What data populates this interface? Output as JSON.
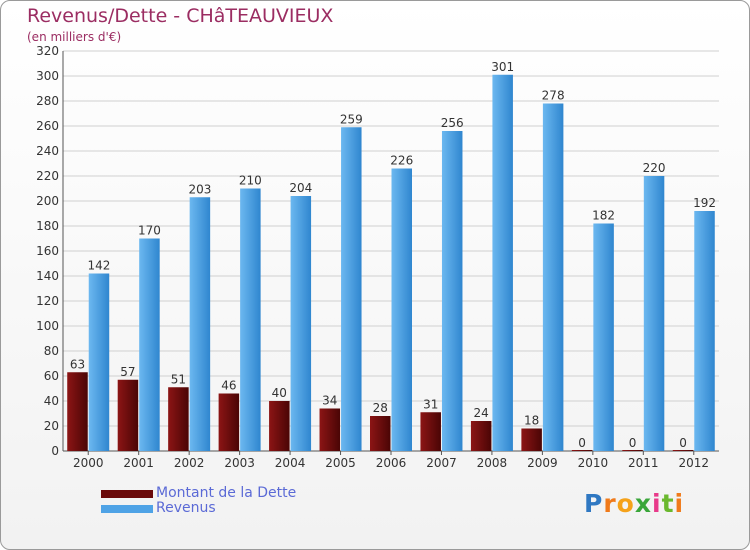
{
  "chart_data": {
    "type": "bar",
    "title": "Revenus/Dette - CHâTEAUVIEUX",
    "subtitle": "(en milliers d'€)",
    "categories": [
      "2000",
      "2001",
      "2002",
      "2003",
      "2004",
      "2005",
      "2006",
      "2007",
      "2008",
      "2009",
      "2010",
      "2011",
      "2012"
    ],
    "series": [
      {
        "name": "Montant de la Dette",
        "color": "#6b0a0a",
        "values": [
          63,
          57,
          51,
          46,
          40,
          34,
          28,
          31,
          24,
          18,
          0,
          0,
          0
        ]
      },
      {
        "name": "Revenus",
        "color": "#4fa3e6",
        "values": [
          142,
          170,
          203,
          210,
          204,
          259,
          226,
          256,
          301,
          278,
          182,
          220,
          192
        ]
      }
    ],
    "ylim": [
      0,
      320
    ],
    "yticks": [
      0,
      20,
      40,
      60,
      80,
      100,
      120,
      140,
      160,
      180,
      200,
      220,
      240,
      260,
      280,
      300,
      320
    ],
    "grid": true,
    "legend_position": "bottom-left"
  },
  "brand": {
    "logo_letters": [
      "P",
      "r",
      "o",
      "x",
      "i",
      "t",
      "i"
    ],
    "logo_colors": [
      "#2f78c2",
      "#f07a1a",
      "#f5a21a",
      "#3aa63a",
      "#e83a8a",
      "#6ab82e",
      "#f07a1a"
    ]
  }
}
